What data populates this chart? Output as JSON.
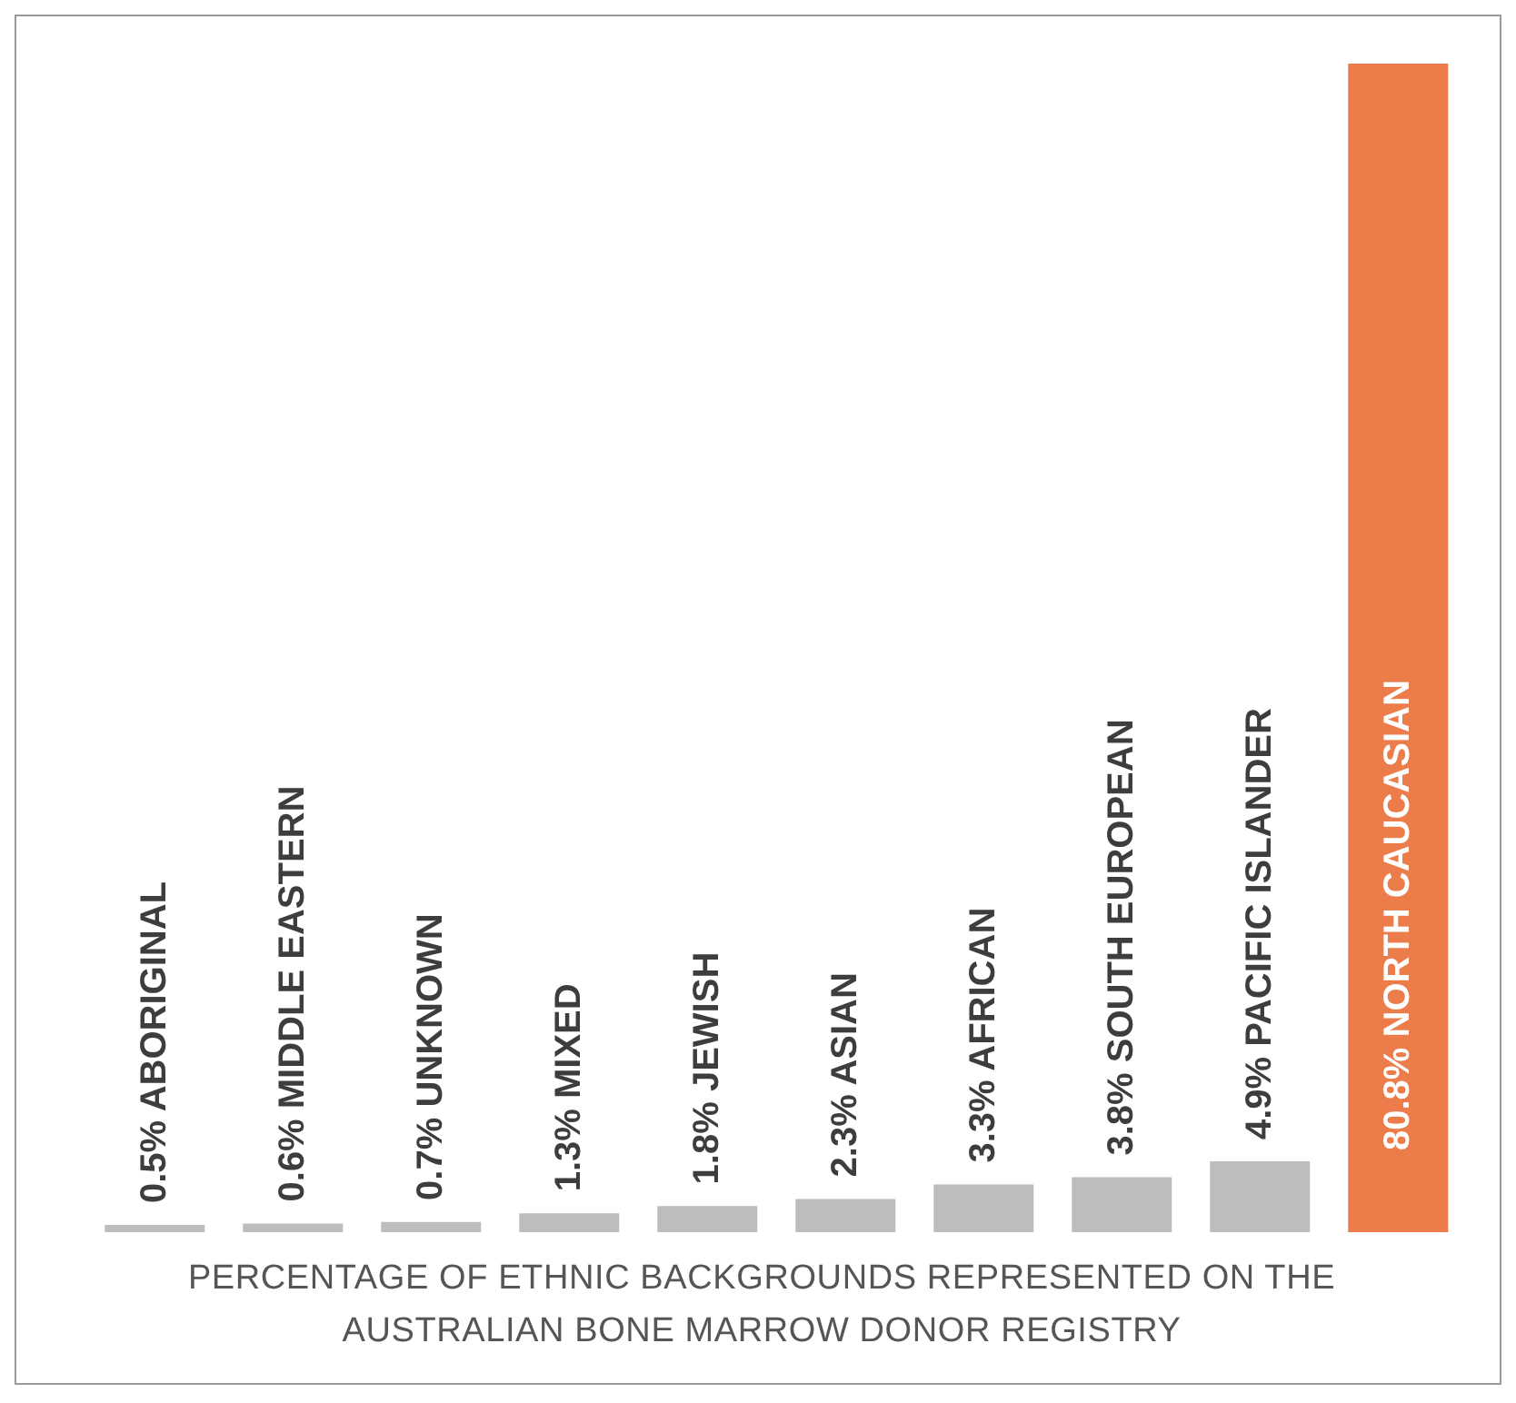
{
  "chart_data": {
    "type": "bar",
    "categories": [
      null,
      null,
      null,
      null,
      null,
      null,
      null,
      null,
      null,
      null
    ],
    "values": [
      0.5,
      0.6,
      0.7,
      1.3,
      1.8,
      2.3,
      3.3,
      3.8,
      4.9,
      80.8
    ],
    "colors": [
      "#bdbdbd",
      "#bdbdbd",
      "#bdbdbd",
      "#bdbdbd",
      "#bdbdbd",
      "#bdbdbd",
      "#bdbdbd",
      "#bdbdbd",
      "#bdbdbd",
      "#ec7c4a"
    ],
    "value_labels": [
      "0.5% ABORIGINAL",
      "0.6% MIDDLE EASTERN",
      "0.7% UNKNOWN",
      "1.3% MIXED",
      "1.8% JEWISH",
      "2.3% ASIAN",
      "3.3% AFRICAN",
      "3.8% SOUTH EUROPEAN",
      "4.9% PACIFIC ISLANDER",
      "80.8% NORTH CAUCASIAN"
    ],
    "xlabel": "PERCENTAGE OF ETHNIC BACKGROUNDS REPRESENTED ON THE AUSTRALIAN BONE MARROW DONOR REGISTRY"
  }
}
